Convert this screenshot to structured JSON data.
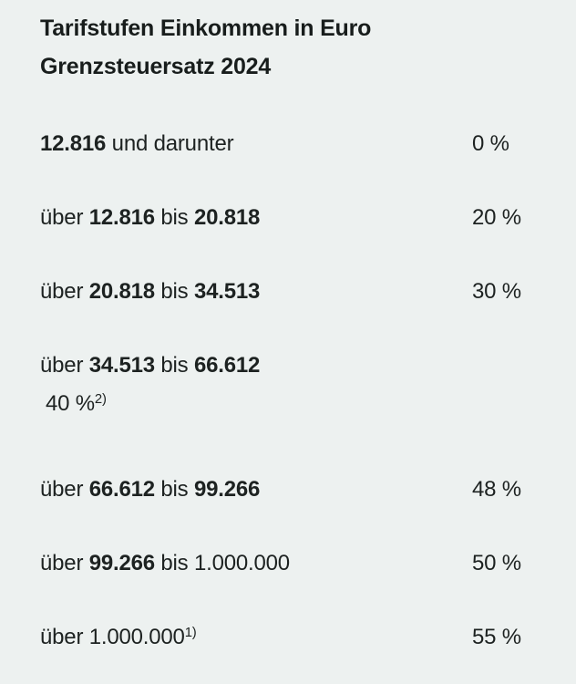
{
  "page": {
    "background_color": "#edf1f0",
    "text_color": "#1d2221"
  },
  "title": {
    "line1": "Tarifstufen Einkommen in Euro",
    "line2": "Grenzsteuersatz 2024"
  },
  "table": {
    "rows": [
      {
        "label": [
          {
            "text": "12.816",
            "bold": true
          },
          {
            "text": " und darunter",
            "bold": false
          }
        ],
        "value": "0 %"
      },
      {
        "label": [
          {
            "text": "über ",
            "bold": false
          },
          {
            "text": "12.816",
            "bold": true
          },
          {
            "text": " bis ",
            "bold": false
          },
          {
            "text": "20.818",
            "bold": true
          }
        ],
        "value": "20 %"
      },
      {
        "label": [
          {
            "text": "über ",
            "bold": false
          },
          {
            "text": "20.818",
            "bold": true
          },
          {
            "text": " bis ",
            "bold": false
          },
          {
            "text": "34.513",
            "bold": true
          }
        ],
        "value": "30 %"
      },
      {
        "label": [
          {
            "text": "über ",
            "bold": false
          },
          {
            "text": "34.513",
            "bold": true
          },
          {
            "text": " bis ",
            "bold": false
          },
          {
            "text": "66.612",
            "bold": true
          }
        ],
        "value": "40 %",
        "value_footnote": "2)",
        "wrapped_value": true
      },
      {
        "label": [
          {
            "text": "über ",
            "bold": false
          },
          {
            "text": "66.612",
            "bold": true
          },
          {
            "text": " bis ",
            "bold": false
          },
          {
            "text": "99.266",
            "bold": true
          }
        ],
        "value": "48 %"
      },
      {
        "label": [
          {
            "text": "über ",
            "bold": false
          },
          {
            "text": "99.266",
            "bold": true
          },
          {
            "text": " bis 1.000.000",
            "bold": false
          }
        ],
        "value": "50 %"
      },
      {
        "label": [
          {
            "text": "über 1.000.000",
            "bold": false
          }
        ],
        "label_footnote": "1)",
        "value": "55 %"
      }
    ]
  }
}
